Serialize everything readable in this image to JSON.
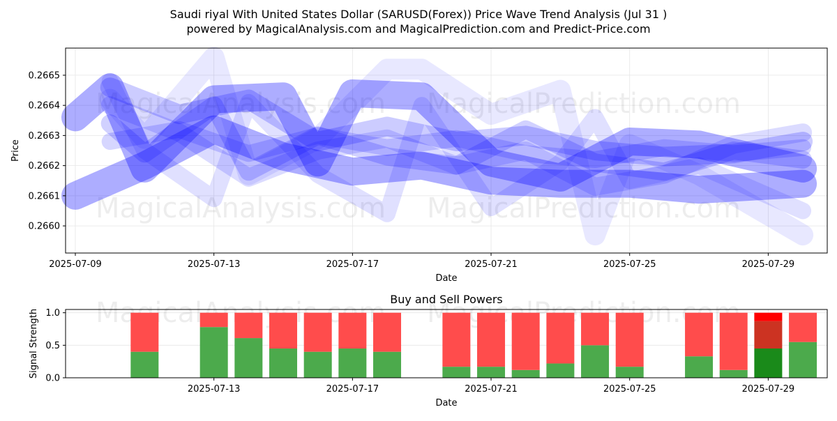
{
  "title_line1": "Saudi riyal With United States Dollar (SARUSD(Forex)) Price Wave Trend Analysis (Jul 31 )",
  "title_line2": "powered by MagicalAnalysis.com and MagicalPrediction.com and Predict-Price.com",
  "watermarks": [
    "MagicalAnalysis.com",
    "MagicalPrediction.com"
  ],
  "colors": {
    "wave": "#0000ff",
    "buy": "#4caa4c",
    "sell": "#ff4c4c",
    "buy_strong": "#1a8a1a",
    "sell_strong": "#ff0000",
    "sell_dark": "#cc3322"
  },
  "chart_data": [
    {
      "type": "line",
      "title": "",
      "xlabel": "Date",
      "ylabel": "Price",
      "x_tick_labels": [
        "2025-07-09",
        "2025-07-13",
        "2025-07-17",
        "2025-07-21",
        "2025-07-25",
        "2025-07-29"
      ],
      "y_tick_labels": [
        "0.2660",
        "0.2661",
        "0.2662",
        "0.2663",
        "0.2664",
        "0.2665"
      ],
      "xlim": [
        "2025-07-09",
        "2025-07-31"
      ],
      "ylim": [
        0.26591,
        0.26659
      ],
      "grid": true,
      "series": [
        {
          "x": [
            "2025-07-09",
            "2025-07-10",
            "2025-07-11",
            "2025-07-13",
            "2025-07-15",
            "2025-07-16",
            "2025-07-17",
            "2025-07-19",
            "2025-07-21",
            "2025-07-23",
            "2025-07-25",
            "2025-07-27",
            "2025-07-30"
          ],
          "values": [
            0.26636,
            0.26646,
            0.26619,
            0.26642,
            0.26643,
            0.26621,
            0.26644,
            0.26643,
            0.26621,
            0.26616,
            0.26628,
            0.26627,
            0.26619
          ],
          "alpha": 0.32,
          "width": 40
        },
        {
          "x": [
            "2025-07-09",
            "2025-07-11",
            "2025-07-13",
            "2025-07-15",
            "2025-07-17",
            "2025-07-19",
            "2025-07-21",
            "2025-07-23",
            "2025-07-25",
            "2025-07-27",
            "2025-07-30"
          ],
          "values": [
            0.2661,
            0.2662,
            0.26632,
            0.26623,
            0.26618,
            0.2662,
            0.26615,
            0.26614,
            0.26614,
            0.26612,
            0.26614
          ],
          "alpha": 0.32,
          "width": 40
        },
        {
          "x": [
            "2025-07-10",
            "2025-07-12",
            "2025-07-14",
            "2025-07-16",
            "2025-07-18",
            "2025-07-20",
            "2025-07-22",
            "2025-07-24",
            "2025-07-26",
            "2025-07-28",
            "2025-07-30"
          ],
          "values": [
            0.26646,
            0.26637,
            0.26642,
            0.26628,
            0.26633,
            0.26628,
            0.2663,
            0.26625,
            0.26623,
            0.26624,
            0.26628
          ],
          "alpha": 0.2,
          "width": 28
        },
        {
          "x": [
            "2025-07-10",
            "2025-07-11",
            "2025-07-13",
            "2025-07-14",
            "2025-07-16",
            "2025-07-18",
            "2025-07-20",
            "2025-07-22",
            "2025-07-24",
            "2025-07-26",
            "2025-07-28",
            "2025-07-30"
          ],
          "values": [
            0.26634,
            0.26624,
            0.2664,
            0.26618,
            0.2663,
            0.26623,
            0.2662,
            0.26632,
            0.26621,
            0.26618,
            0.26625,
            0.26622
          ],
          "alpha": 0.18,
          "width": 26
        },
        {
          "x": [
            "2025-07-10",
            "2025-07-12",
            "2025-07-14",
            "2025-07-16",
            "2025-07-18",
            "2025-07-20",
            "2025-07-22",
            "2025-07-24",
            "2025-07-26",
            "2025-07-28",
            "2025-07-30"
          ],
          "values": [
            0.26628,
            0.26632,
            0.26624,
            0.2663,
            0.26626,
            0.26629,
            0.26624,
            0.26622,
            0.26626,
            0.26624,
            0.26626
          ],
          "alpha": 0.16,
          "width": 24
        },
        {
          "x": [
            "2025-07-10",
            "2025-07-11",
            "2025-07-13",
            "2025-07-14",
            "2025-07-16",
            "2025-07-18",
            "2025-07-19",
            "2025-07-21",
            "2025-07-23",
            "2025-07-24",
            "2025-07-25",
            "2025-07-27",
            "2025-07-30"
          ],
          "values": [
            0.26648,
            0.26625,
            0.26609,
            0.26641,
            0.26617,
            0.26604,
            0.2664,
            0.26606,
            0.26621,
            0.26636,
            0.26615,
            0.2662,
            0.26605
          ],
          "alpha": 0.12,
          "width": 24
        },
        {
          "x": [
            "2025-07-10",
            "2025-07-11",
            "2025-07-13",
            "2025-07-14",
            "2025-07-16",
            "2025-07-18",
            "2025-07-19",
            "2025-07-21",
            "2025-07-23",
            "2025-07-24",
            "2025-07-25",
            "2025-07-27",
            "2025-07-30"
          ],
          "values": [
            0.26642,
            0.26629,
            0.26656,
            0.26617,
            0.26629,
            0.26652,
            0.26652,
            0.26637,
            0.26645,
            0.26597,
            0.26627,
            0.26617,
            0.26597
          ],
          "alpha": 0.09,
          "width": 30
        },
        {
          "x": [
            "2025-07-10",
            "2025-07-12",
            "2025-07-14",
            "2025-07-16",
            "2025-07-18",
            "2025-07-20",
            "2025-07-22",
            "2025-07-24",
            "2025-07-26",
            "2025-07-28",
            "2025-07-30"
          ],
          "values": [
            0.2664,
            0.26631,
            0.26616,
            0.26625,
            0.26629,
            0.2662,
            0.26625,
            0.26613,
            0.26617,
            0.26627,
            0.26631
          ],
          "alpha": 0.14,
          "width": 26
        }
      ]
    },
    {
      "type": "bar",
      "title": "Buy and Sell Powers",
      "xlabel": "Date",
      "ylabel": "Signal Strength",
      "x_tick_labels": [
        "2025-07-13",
        "2025-07-17",
        "2025-07-21",
        "2025-07-25",
        "2025-07-29"
      ],
      "y_tick_labels": [
        "0.0",
        "0.5",
        "1.0"
      ],
      "ylim": [
        0,
        1.05
      ],
      "grid": true,
      "categories": [
        "2025-07-11",
        "2025-07-13",
        "2025-07-14",
        "2025-07-15",
        "2025-07-16",
        "2025-07-17",
        "2025-07-18",
        "2025-07-20",
        "2025-07-21",
        "2025-07-22",
        "2025-07-23",
        "2025-07-24",
        "2025-07-25",
        "2025-07-27",
        "2025-07-28",
        "2025-07-29",
        "2025-07-30"
      ],
      "series": [
        {
          "values": [
            0.4,
            0.78,
            0.61,
            0.45,
            0.4,
            0.45,
            0.4,
            0.17,
            0.17,
            0.12,
            0.22,
            0.5,
            0.17,
            0.33,
            0.12,
            0.45,
            0.55
          ]
        },
        {
          "values": [
            0.6,
            0.22,
            0.39,
            0.55,
            0.6,
            0.55,
            0.6,
            0.83,
            0.83,
            0.88,
            0.78,
            0.5,
            0.83,
            0.67,
            0.88,
            0.55,
            0.45
          ]
        }
      ]
    }
  ]
}
